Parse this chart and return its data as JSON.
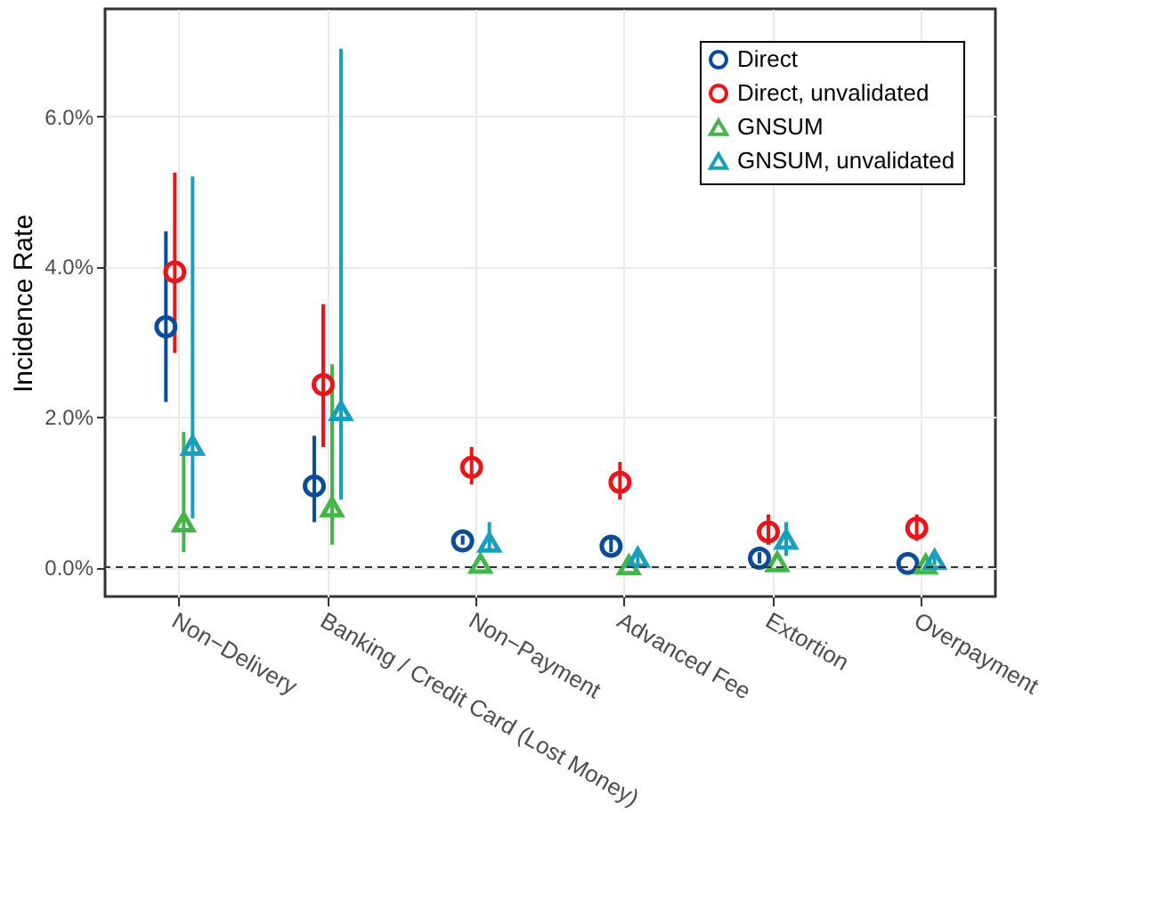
{
  "chart_data": {
    "type": "scatter",
    "ylabel": "Incidence Rate",
    "categories": [
      "Non−Delivery",
      "Banking / Credit Card (Lost Money)",
      "Non−Payment",
      "Advanced Fee",
      "Extortion",
      "Overpayment"
    ],
    "series": [
      {
        "name": "Direct",
        "color": "#0a4c99",
        "marker": "circle",
        "values": [
          3.2,
          1.08,
          0.35,
          0.28,
          0.12,
          0.05
        ],
        "errors": [
          [
            2.2,
            4.47
          ],
          [
            0.6,
            1.75
          ],
          [
            0.3,
            0.42
          ],
          [
            0.2,
            0.38
          ],
          [
            0.05,
            0.2
          ],
          null
        ]
      },
      {
        "name": "Direct, unvalidated",
        "color": "#e8161b",
        "marker": "circle",
        "values": [
          3.93,
          2.43,
          1.33,
          1.13,
          0.47,
          0.52
        ],
        "errors": [
          [
            2.85,
            5.25
          ],
          [
            1.6,
            3.5
          ],
          [
            1.1,
            1.6
          ],
          [
            0.9,
            1.4
          ],
          [
            0.3,
            0.7
          ],
          [
            0.35,
            0.7
          ]
        ]
      },
      {
        "name": "GNSUM",
        "color": "#44b549",
        "marker": "triangle",
        "values": [
          0.6,
          0.8,
          0.05,
          0.03,
          0.07,
          0.04
        ],
        "errors": [
          [
            0.2,
            1.8
          ],
          [
            0.3,
            2.7
          ],
          null,
          null,
          null,
          null
        ]
      },
      {
        "name": "GNSUM, unvalidated",
        "color": "#17a0be",
        "marker": "triangle",
        "values": [
          1.62,
          2.08,
          0.33,
          0.13,
          0.37,
          0.1
        ],
        "errors": [
          [
            0.65,
            5.2
          ],
          [
            0.9,
            6.9
          ],
          [
            0.2,
            0.6
          ],
          [
            0.05,
            0.25
          ],
          [
            0.15,
            0.6
          ],
          [
            0.03,
            0.2
          ]
        ]
      }
    ],
    "ylim": [
      -0.39,
      7.43
    ],
    "yticks": [
      {
        "value": 0,
        "label": "0.0%"
      },
      {
        "value": 2,
        "label": "2.0%"
      },
      {
        "value": 4,
        "label": "4.0%"
      },
      {
        "value": 6,
        "label": "6.0%"
      }
    ],
    "ref_lines": [
      {
        "axis": "y",
        "value": 0,
        "line_style": "dashed",
        "color": "#333333"
      }
    ],
    "grid": true,
    "legend": "top right"
  }
}
